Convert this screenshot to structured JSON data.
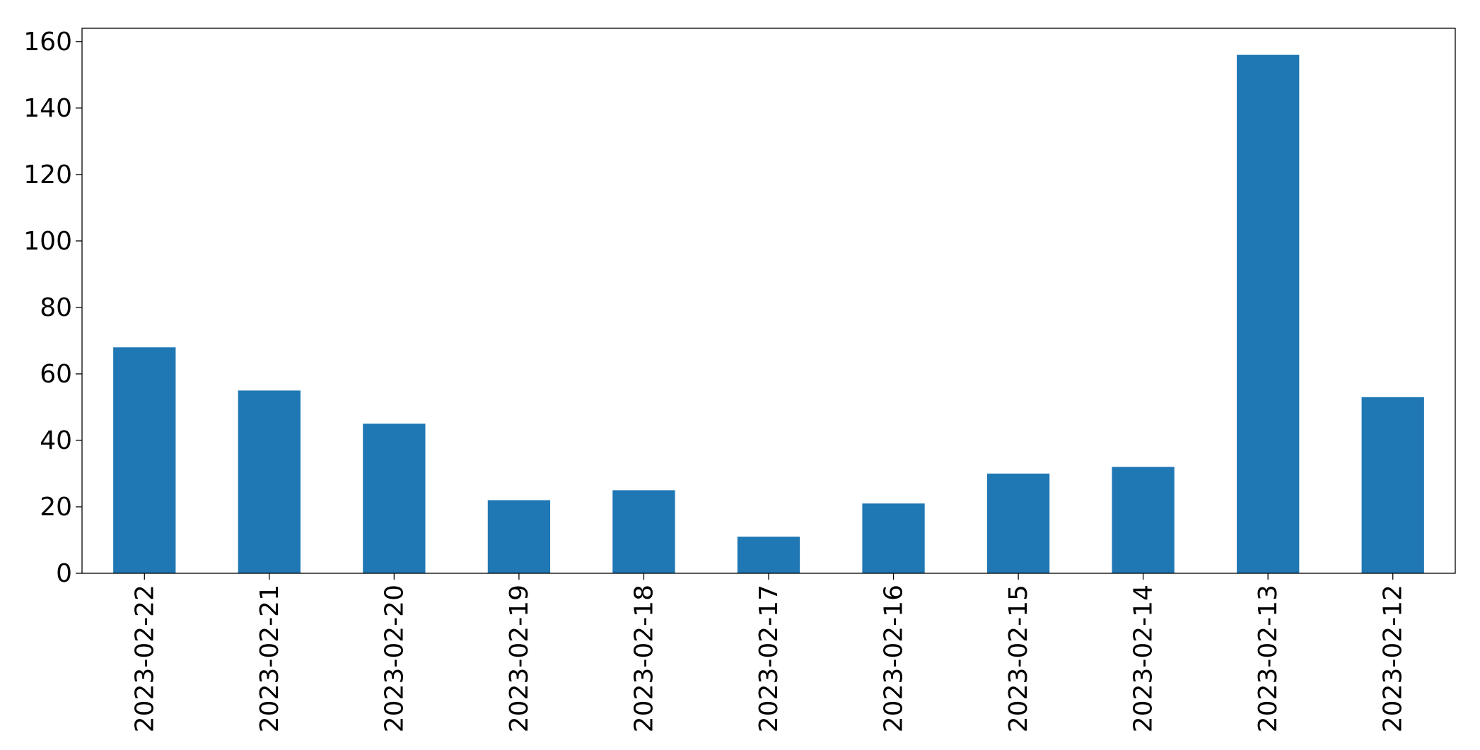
{
  "chart_data": {
    "type": "bar",
    "title": "",
    "xlabel": "",
    "ylabel": "",
    "categories": [
      "2023-02-22",
      "2023-02-21",
      "2023-02-20",
      "2023-02-19",
      "2023-02-18",
      "2023-02-17",
      "2023-02-16",
      "2023-02-15",
      "2023-02-14",
      "2023-02-13",
      "2023-02-12"
    ],
    "values": [
      68,
      55,
      45,
      22,
      25,
      11,
      21,
      30,
      32,
      156,
      53
    ],
    "ylim": [
      0,
      164
    ],
    "yticks": [
      0,
      20,
      40,
      60,
      80,
      100,
      120,
      140,
      160
    ],
    "ytick_labels": [
      "0",
      "20",
      "40",
      "60",
      "80",
      "100",
      "120",
      "140",
      "160"
    ],
    "bar_color": "#1f77b4",
    "grid": false,
    "legend": "none",
    "xtick_rotation": "vertical"
  }
}
